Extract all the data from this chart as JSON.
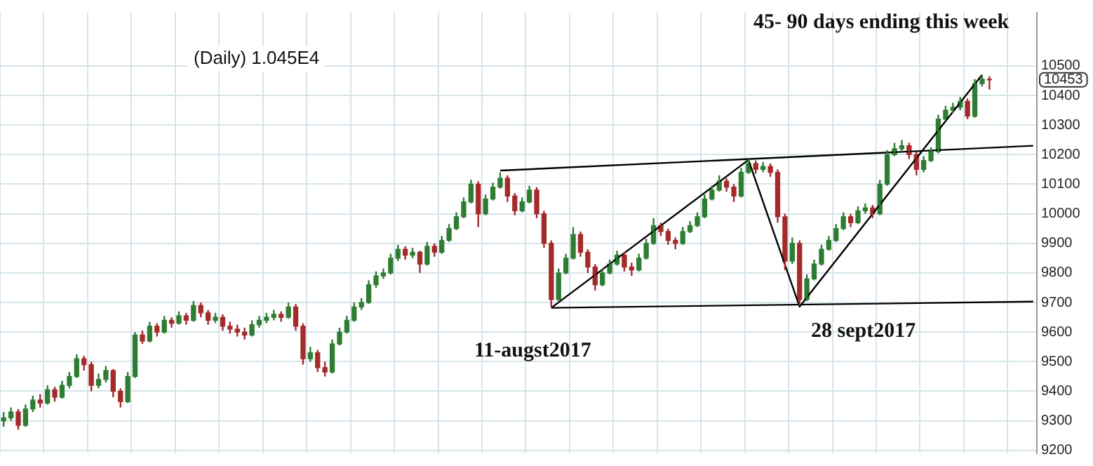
{
  "chart_data": {
    "type": "candlestick",
    "categories": [
      null,
      null,
      null,
      null,
      null,
      null,
      null,
      null,
      null,
      null,
      null,
      null,
      null,
      null,
      null,
      null,
      null,
      null,
      null,
      null,
      null,
      null,
      null,
      null,
      null,
      null,
      null,
      null,
      null,
      null,
      null,
      null,
      null,
      null,
      null,
      null,
      null,
      null,
      null,
      null,
      null,
      null,
      null,
      null,
      null,
      null,
      null,
      null,
      null,
      null,
      null,
      null,
      null,
      null,
      null,
      null,
      null,
      null,
      null,
      null,
      null,
      null,
      null,
      null,
      null,
      null,
      null,
      null,
      null,
      null,
      null,
      null,
      null,
      null,
      null,
      null,
      null,
      null,
      null,
      null,
      null,
      null,
      null,
      null,
      null,
      null,
      null,
      null,
      null,
      null,
      null,
      null,
      null,
      null,
      null,
      null,
      null,
      null,
      null,
      null,
      null,
      null,
      null,
      null,
      null,
      null,
      null,
      null,
      null,
      null,
      null,
      null,
      null,
      null,
      null,
      null,
      null,
      null,
      null,
      null,
      null,
      null,
      null,
      null,
      null,
      null,
      null,
      null,
      null,
      null,
      null,
      null,
      null,
      null,
      null,
      null,
      null,
      null,
      null,
      null,
      null,
      null
    ],
    "ohlc": [
      [
        9300,
        9330,
        9280,
        9310
      ],
      [
        9310,
        9345,
        9300,
        9330
      ],
      [
        9330,
        9340,
        9270,
        9285
      ],
      [
        9285,
        9355,
        9280,
        9340
      ],
      [
        9340,
        9385,
        9330,
        9370
      ],
      [
        9370,
        9390,
        9345,
        9360
      ],
      [
        9360,
        9420,
        9355,
        9405
      ],
      [
        9405,
        9415,
        9365,
        9380
      ],
      [
        9380,
        9435,
        9375,
        9420
      ],
      [
        9420,
        9465,
        9410,
        9450
      ],
      [
        9450,
        9525,
        9445,
        9510
      ],
      [
        9510,
        9520,
        9470,
        9490
      ],
      [
        9490,
        9500,
        9400,
        9420
      ],
      [
        9420,
        9460,
        9410,
        9440
      ],
      [
        9440,
        9485,
        9430,
        9470
      ],
      [
        9470,
        9475,
        9380,
        9400
      ],
      [
        9400,
        9410,
        9345,
        9365
      ],
      [
        9365,
        9465,
        9360,
        9450
      ],
      [
        9450,
        9600,
        9445,
        9590
      ],
      [
        9590,
        9605,
        9560,
        9570
      ],
      [
        9570,
        9635,
        9565,
        9620
      ],
      [
        9620,
        9630,
        9585,
        9600
      ],
      [
        9600,
        9655,
        9595,
        9640
      ],
      [
        9640,
        9650,
        9615,
        9630
      ],
      [
        9630,
        9670,
        9625,
        9655
      ],
      [
        9655,
        9665,
        9625,
        9640
      ],
      [
        9640,
        9705,
        9635,
        9690
      ],
      [
        9690,
        9700,
        9650,
        9665
      ],
      [
        9665,
        9675,
        9625,
        9640
      ],
      [
        9640,
        9665,
        9630,
        9650
      ],
      [
        9650,
        9660,
        9605,
        9620
      ],
      [
        9620,
        9635,
        9595,
        9610
      ],
      [
        9610,
        9625,
        9585,
        9600
      ],
      [
        9600,
        9615,
        9575,
        9590
      ],
      [
        9590,
        9640,
        9585,
        9625
      ],
      [
        9625,
        9655,
        9615,
        9640
      ],
      [
        9640,
        9665,
        9630,
        9650
      ],
      [
        9650,
        9675,
        9640,
        9660
      ],
      [
        9660,
        9670,
        9635,
        9650
      ],
      [
        9650,
        9700,
        9645,
        9685
      ],
      [
        9685,
        9695,
        9605,
        9620
      ],
      [
        9620,
        9630,
        9490,
        9510
      ],
      [
        9510,
        9550,
        9500,
        9530
      ],
      [
        9530,
        9540,
        9465,
        9480
      ],
      [
        9480,
        9500,
        9450,
        9465
      ],
      [
        9465,
        9575,
        9460,
        9560
      ],
      [
        9560,
        9615,
        9555,
        9600
      ],
      [
        9600,
        9655,
        9595,
        9640
      ],
      [
        9640,
        9700,
        9635,
        9685
      ],
      [
        9685,
        9715,
        9675,
        9700
      ],
      [
        9700,
        9775,
        9695,
        9760
      ],
      [
        9760,
        9805,
        9750,
        9790
      ],
      [
        9790,
        9815,
        9780,
        9800
      ],
      [
        9800,
        9865,
        9795,
        9850
      ],
      [
        9850,
        9895,
        9840,
        9880
      ],
      [
        9880,
        9890,
        9845,
        9860
      ],
      [
        9860,
        9885,
        9850,
        9870
      ],
      [
        9870,
        9875,
        9800,
        9830
      ],
      [
        9830,
        9905,
        9825,
        9890
      ],
      [
        9890,
        9900,
        9855,
        9870
      ],
      [
        9870,
        9925,
        9865,
        9910
      ],
      [
        9910,
        9965,
        9905,
        9950
      ],
      [
        9950,
        10005,
        9945,
        9990
      ],
      [
        9990,
        10055,
        9985,
        10040
      ],
      [
        10040,
        10115,
        10035,
        10100
      ],
      [
        10100,
        10110,
        9955,
        10000
      ],
      [
        10000,
        10065,
        9995,
        10050
      ],
      [
        10050,
        10105,
        10045,
        10090
      ],
      [
        10090,
        10140,
        10085,
        10120
      ],
      [
        10120,
        10130,
        10040,
        10060
      ],
      [
        10060,
        10070,
        9995,
        10010
      ],
      [
        10010,
        10055,
        10005,
        10040
      ],
      [
        10040,
        10095,
        10035,
        10080
      ],
      [
        10080,
        10090,
        9985,
        10000
      ],
      [
        10000,
        10010,
        9885,
        9900
      ],
      [
        9900,
        9910,
        9685,
        9710
      ],
      [
        9710,
        9815,
        9705,
        9800
      ],
      [
        9800,
        9865,
        9795,
        9850
      ],
      [
        9850,
        9955,
        9845,
        9930
      ],
      [
        9930,
        9940,
        9855,
        9870
      ],
      [
        9870,
        9880,
        9800,
        9820
      ],
      [
        9820,
        9830,
        9740,
        9760
      ],
      [
        9760,
        9815,
        9755,
        9800
      ],
      [
        9800,
        9845,
        9795,
        9830
      ],
      [
        9830,
        9875,
        9825,
        9860
      ],
      [
        9860,
        9870,
        9805,
        9820
      ],
      [
        9820,
        9835,
        9790,
        9810
      ],
      [
        9810,
        9865,
        9805,
        9850
      ],
      [
        9850,
        9915,
        9845,
        9900
      ],
      [
        9900,
        9985,
        9895,
        9960
      ],
      [
        9960,
        9970,
        9925,
        9940
      ],
      [
        9940,
        9950,
        9895,
        9910
      ],
      [
        9910,
        9920,
        9880,
        9900
      ],
      [
        9900,
        9955,
        9895,
        9940
      ],
      [
        9940,
        9975,
        9935,
        9960
      ],
      [
        9960,
        10005,
        9955,
        9990
      ],
      [
        9990,
        10065,
        9985,
        10050
      ],
      [
        10050,
        10095,
        10045,
        10080
      ],
      [
        10080,
        10130,
        10075,
        10110
      ],
      [
        10110,
        10120,
        10075,
        10090
      ],
      [
        10090,
        10100,
        10040,
        10060
      ],
      [
        10060,
        10155,
        10055,
        10140
      ],
      [
        10140,
        10185,
        10135,
        10170
      ],
      [
        10170,
        10180,
        10135,
        10150
      ],
      [
        10150,
        10175,
        10140,
        10160
      ],
      [
        10160,
        10170,
        10125,
        10140
      ],
      [
        10140,
        10150,
        9970,
        9990
      ],
      [
        9990,
        10000,
        9810,
        9840
      ],
      [
        9840,
        9920,
        9830,
        9900
      ],
      [
        9900,
        9910,
        9690,
        9710
      ],
      [
        9710,
        9795,
        9705,
        9780
      ],
      [
        9780,
        9845,
        9775,
        9830
      ],
      [
        9830,
        9895,
        9825,
        9880
      ],
      [
        9880,
        9925,
        9875,
        9910
      ],
      [
        9910,
        9965,
        9905,
        9950
      ],
      [
        9950,
        10005,
        9945,
        9990
      ],
      [
        9990,
        10000,
        9955,
        9970
      ],
      [
        9970,
        10025,
        9965,
        10010
      ],
      [
        10010,
        10035,
        10000,
        10020
      ],
      [
        10020,
        10030,
        9985,
        10000
      ],
      [
        10000,
        10115,
        9995,
        10100
      ],
      [
        10100,
        10215,
        10095,
        10200
      ],
      [
        10200,
        10240,
        10195,
        10220
      ],
      [
        10220,
        10250,
        10210,
        10230
      ],
      [
        10230,
        10240,
        10185,
        10200
      ],
      [
        10200,
        10210,
        10130,
        10150
      ],
      [
        10150,
        10195,
        10140,
        10180
      ],
      [
        10180,
        10225,
        10175,
        10210
      ],
      [
        10210,
        10335,
        10205,
        10320
      ],
      [
        10320,
        10365,
        10315,
        10350
      ],
      [
        10350,
        10375,
        10340,
        10360
      ],
      [
        10360,
        10395,
        10350,
        10380
      ],
      [
        10380,
        10390,
        10320,
        10330
      ],
      [
        10330,
        10455,
        10325,
        10440
      ],
      [
        10440,
        10470,
        10430,
        10455
      ],
      [
        10455,
        10465,
        10420,
        10453
      ],
      null,
      null,
      null,
      null,
      null,
      null
    ],
    "colors": [
      "#2e7d32",
      "#2e7d32",
      "#a52a2a",
      "#2e7d32",
      "#2e7d32",
      "#a52a2a",
      "#2e7d32",
      "#a52a2a",
      "#2e7d32",
      "#2e7d32",
      "#2e7d32",
      "#a52a2a",
      "#a52a2a",
      "#2e7d32",
      "#2e7d32",
      "#a52a2a",
      "#a52a2a",
      "#2e7d32",
      "#2e7d32",
      "#a52a2a",
      "#2e7d32",
      "#a52a2a",
      "#2e7d32",
      "#a52a2a",
      "#2e7d32",
      "#a52a2a",
      "#2e7d32",
      "#a52a2a",
      "#a52a2a",
      "#2e7d32",
      "#a52a2a",
      "#a52a2a",
      "#a52a2a",
      "#a52a2a",
      "#2e7d32",
      "#2e7d32",
      "#2e7d32",
      "#2e7d32",
      "#a52a2a",
      "#2e7d32",
      "#a52a2a",
      "#a52a2a",
      "#2e7d32",
      "#a52a2a",
      "#a52a2a",
      "#2e7d32",
      "#2e7d32",
      "#2e7d32",
      "#2e7d32",
      "#2e7d32",
      "#2e7d32",
      "#2e7d32",
      "#2e7d32",
      "#2e7d32",
      "#2e7d32",
      "#a52a2a",
      "#2e7d32",
      "#a52a2a",
      "#2e7d32",
      "#a52a2a",
      "#2e7d32",
      "#2e7d32",
      "#2e7d32",
      "#2e7d32",
      "#2e7d32",
      "#a52a2a",
      "#2e7d32",
      "#2e7d32",
      "#2e7d32",
      "#a52a2a",
      "#a52a2a",
      "#2e7d32",
      "#2e7d32",
      "#a52a2a",
      "#a52a2a",
      "#a52a2a",
      "#2e7d32",
      "#2e7d32",
      "#2e7d32",
      "#a52a2a",
      "#a52a2a",
      "#a52a2a",
      "#2e7d32",
      "#2e7d32",
      "#2e7d32",
      "#a52a2a",
      "#a52a2a",
      "#2e7d32",
      "#2e7d32",
      "#2e7d32",
      "#a52a2a",
      "#a52a2a",
      "#a52a2a",
      "#2e7d32",
      "#2e7d32",
      "#2e7d32",
      "#2e7d32",
      "#2e7d32",
      "#2e7d32",
      "#a52a2a",
      "#a52a2a",
      "#2e7d32",
      "#2e7d32",
      "#a52a2a",
      "#2e7d32",
      "#a52a2a",
      "#a52a2a",
      "#a52a2a",
      "#2e7d32",
      "#a52a2a",
      "#2e7d32",
      "#2e7d32",
      "#2e7d32",
      "#2e7d32",
      "#2e7d32",
      "#2e7d32",
      "#a52a2a",
      "#2e7d32",
      "#2e7d32",
      "#a52a2a",
      "#2e7d32",
      "#2e7d32",
      "#2e7d32",
      "#2e7d32",
      "#a52a2a",
      "#a52a2a",
      "#2e7d32",
      "#2e7d32",
      "#2e7d32",
      "#2e7d32",
      "#2e7d32",
      "#2e7d32",
      "#a52a2a",
      "#2e7d32",
      "#2e7d32",
      "#a52a2a",
      null,
      null,
      null,
      null,
      null,
      null
    ],
    "series": [
      {
        "type": "line",
        "color": "#000000",
        "values": [
          null,
          null,
          null,
          null,
          null,
          null,
          null,
          null,
          null,
          null,
          null,
          null,
          null,
          null,
          null,
          null,
          null,
          null,
          null,
          null,
          null,
          null,
          null,
          null,
          null,
          null,
          null,
          null,
          null,
          null,
          null,
          null,
          null,
          null,
          null,
          null,
          null,
          null,
          null,
          null,
          null,
          null,
          null,
          null,
          null,
          null,
          null,
          null,
          null,
          null,
          null,
          null,
          null,
          null,
          null,
          null,
          null,
          null,
          null,
          null,
          null,
          null,
          null,
          null,
          null,
          null,
          null,
          null,
          10146,
          null,
          null,
          null,
          null,
          null,
          null,
          null,
          null,
          null,
          null,
          null,
          null,
          null,
          null,
          null,
          null,
          null,
          null,
          null,
          null,
          null,
          null,
          null,
          null,
          null,
          null,
          null,
          null,
          null,
          null,
          null,
          null,
          null,
          null,
          null,
          null,
          null,
          null,
          null,
          null,
          null,
          null,
          null,
          null,
          null,
          null,
          null,
          null,
          null,
          null,
          null,
          null,
          null,
          null,
          null,
          null,
          null,
          null,
          null,
          null,
          null,
          null,
          null,
          null,
          null,
          null,
          null,
          null,
          null,
          null,
          null,
          null,
          10230
        ]
      },
      {
        "type": "line",
        "color": "#000000",
        "values": [
          null,
          null,
          null,
          null,
          null,
          null,
          null,
          null,
          null,
          null,
          null,
          null,
          null,
          null,
          null,
          null,
          null,
          null,
          null,
          null,
          null,
          null,
          null,
          null,
          null,
          null,
          null,
          null,
          null,
          null,
          null,
          null,
          null,
          null,
          null,
          null,
          null,
          null,
          null,
          null,
          null,
          null,
          null,
          null,
          null,
          null,
          null,
          null,
          null,
          null,
          null,
          null,
          null,
          null,
          null,
          null,
          null,
          null,
          null,
          null,
          null,
          null,
          null,
          null,
          null,
          null,
          null,
          null,
          null,
          null,
          null,
          null,
          null,
          null,
          null,
          9682,
          null,
          null,
          null,
          null,
          null,
          null,
          null,
          null,
          null,
          null,
          null,
          null,
          null,
          null,
          null,
          null,
          null,
          null,
          null,
          null,
          null,
          null,
          null,
          null,
          null,
          null,
          null,
          null,
          null,
          null,
          null,
          null,
          null,
          null,
          null,
          null,
          null,
          null,
          null,
          null,
          null,
          null,
          null,
          null,
          null,
          null,
          null,
          null,
          null,
          null,
          null,
          null,
          null,
          null,
          null,
          null,
          null,
          null,
          null,
          null,
          null,
          null,
          null,
          null,
          null,
          9703
        ]
      },
      {
        "type": "line",
        "color": "#000000",
        "values": [
          null,
          null,
          null,
          null,
          null,
          null,
          null,
          null,
          null,
          null,
          null,
          null,
          null,
          null,
          null,
          null,
          null,
          null,
          null,
          null,
          null,
          null,
          null,
          null,
          null,
          null,
          null,
          null,
          null,
          null,
          null,
          null,
          null,
          null,
          null,
          null,
          null,
          null,
          null,
          null,
          null,
          null,
          null,
          null,
          null,
          null,
          null,
          null,
          null,
          null,
          null,
          null,
          null,
          null,
          null,
          null,
          null,
          null,
          null,
          null,
          null,
          null,
          null,
          null,
          null,
          null,
          null,
          null,
          null,
          null,
          null,
          null,
          null,
          null,
          null,
          9682,
          null,
          null,
          null,
          null,
          null,
          null,
          null,
          null,
          null,
          null,
          null,
          null,
          null,
          null,
          null,
          null,
          null,
          null,
          null,
          null,
          null,
          null,
          null,
          null,
          null,
          null,
          10182,
          null,
          null,
          null,
          null,
          null,
          null,
          9686,
          null,
          null,
          null,
          null,
          null,
          null,
          null,
          null,
          null,
          null,
          null,
          null,
          null,
          null,
          null,
          null,
          null,
          null,
          null,
          null,
          null,
          null,
          null,
          null,
          10470,
          null,
          null,
          null,
          null,
          null,
          null,
          null
        ]
      }
    ],
    "ylim": [
      9190,
      10680
    ],
    "yticks": [
      9200,
      9300,
      9400,
      9500,
      9600,
      9700,
      9800,
      9900,
      10000,
      10100,
      10200,
      10300,
      10400,
      10500
    ],
    "grid": true,
    "tick_labels": "y",
    "legend": false,
    "annotations": [
      "(Daily) 1.045E4",
      "45- 90 days ending this week",
      "11-augst2017",
      "28 sept2017",
      "10453"
    ]
  }
}
